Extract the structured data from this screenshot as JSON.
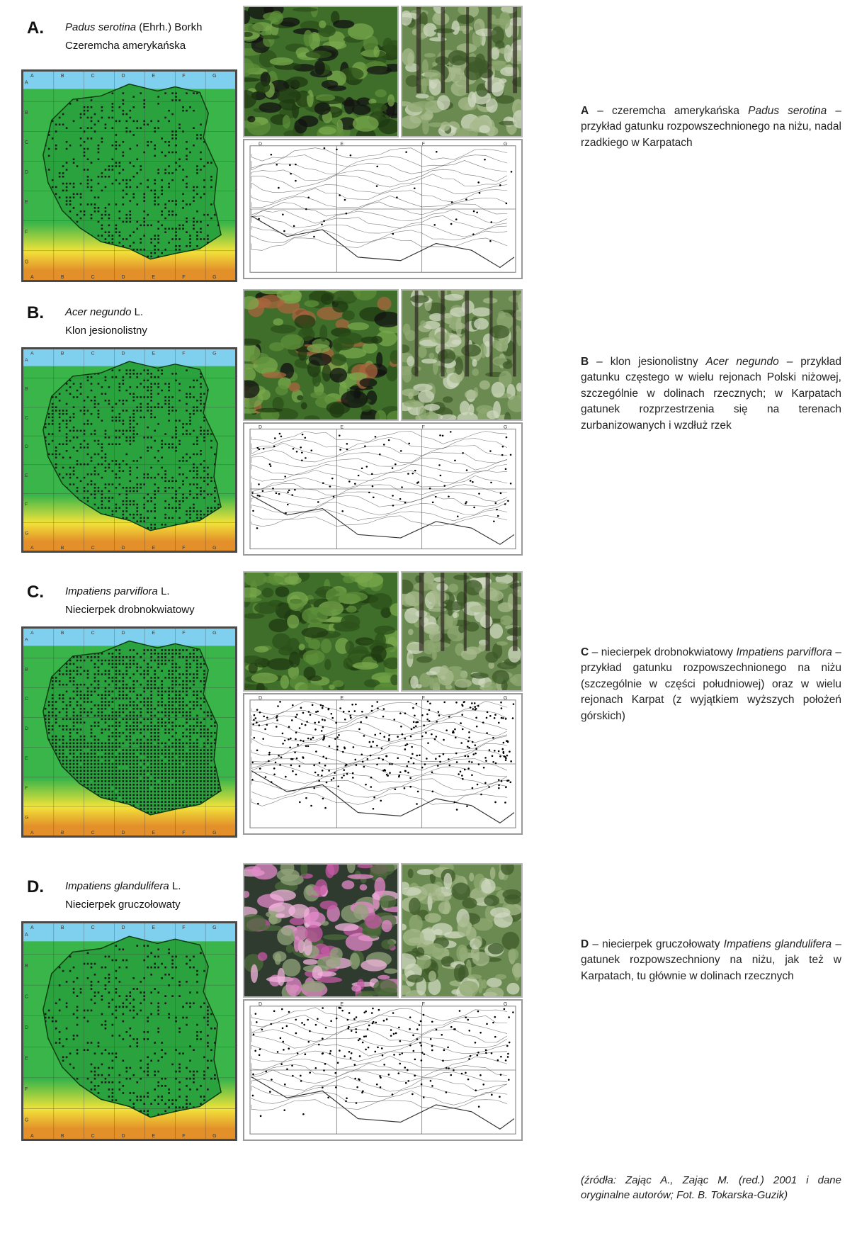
{
  "panels": [
    {
      "letter": "A.",
      "species_name": "Padus serotina",
      "species_author": " (Ehrh.) Borkh",
      "common_name": "Czeremcha amerykańska",
      "desc_bold": "A",
      "desc_pre": " – czeremcha amerykańska ",
      "desc_italic": "Padus serotina",
      "desc_post": " – przykład gatunku rozpowszechnionego na niżu, nadal rzadkiego w Karpatach",
      "photo1_theme": "dark fruit clusters among leaves",
      "photo2_theme": "forest understory",
      "dot_density": 0.22,
      "carp_density": 0.05
    },
    {
      "letter": "B.",
      "species_name": "Acer negundo",
      "species_author": " L.",
      "common_name": "Klon jesionolistny",
      "desc_bold": "B",
      "desc_pre": " – klon jesionolistny ",
      "desc_italic": "Acer negundo",
      "desc_post": " – przykład gatunku częstego w wielu rejonach Polski niżowej, szczególnie w dolinach rzecznych; w Karpatach gatunek rozprzestrzenia się na terenach zurbanizowanych i wzdłuż rzek",
      "photo1_theme": "compound leaves with winged fruits",
      "photo2_theme": "young trees in forest",
      "dot_density": 0.34,
      "carp_density": 0.12
    },
    {
      "letter": "C.",
      "species_name": "Impatiens parviflora",
      "species_author": " L.",
      "common_name": "Niecierpek drobnokwiatowy",
      "desc_bold": "C",
      "desc_pre": " – niecierpek drobnokwiatowy ",
      "desc_italic": "Impatiens parviflora",
      "desc_post": " – przykład gatunku rozpowszechnionego na niżu (szczególnie w części południowej) oraz w wielu rejonach Karpat (z wyjątkiem wyższych położeń górskich)",
      "photo1_theme": "green leaves close-up",
      "photo2_theme": "dense herb layer in forest",
      "dot_density": 0.62,
      "carp_density": 0.42
    },
    {
      "letter": "D.",
      "species_name": "Impatiens glandulifera",
      "species_author": " L.",
      "common_name": "Niecierpek gruczołowaty",
      "desc_bold": "D",
      "desc_pre": " – niecierpek gruczołowaty ",
      "desc_italic": "Impatiens glandulifera",
      "desc_post": " – gatunek rozpowszechniony na niżu, jak też w Karpatach, tu głównie w dolinach rzecznych",
      "photo1_theme": "pink flowers",
      "photo2_theme": "flowering plants in meadow",
      "dot_density": 0.2,
      "carp_density": 0.24
    }
  ],
  "source_note": "(źródła: Zając A., Zając M. (red.) 2001 i dane oryginalne autorów; Fot. B. Tokarska-Guzik)",
  "map_grid_letters": [
    "A",
    "B",
    "C",
    "D",
    "E",
    "F",
    "G"
  ],
  "carp_grid_letters": [
    "D",
    "E",
    "F",
    "G"
  ],
  "colors": {
    "sea": "#7fd0ee",
    "lowland": "#39b54a",
    "upland": "#f2e33a",
    "mountain": "#e3902a",
    "dot": "#1b1b1b",
    "text": "#222222"
  }
}
